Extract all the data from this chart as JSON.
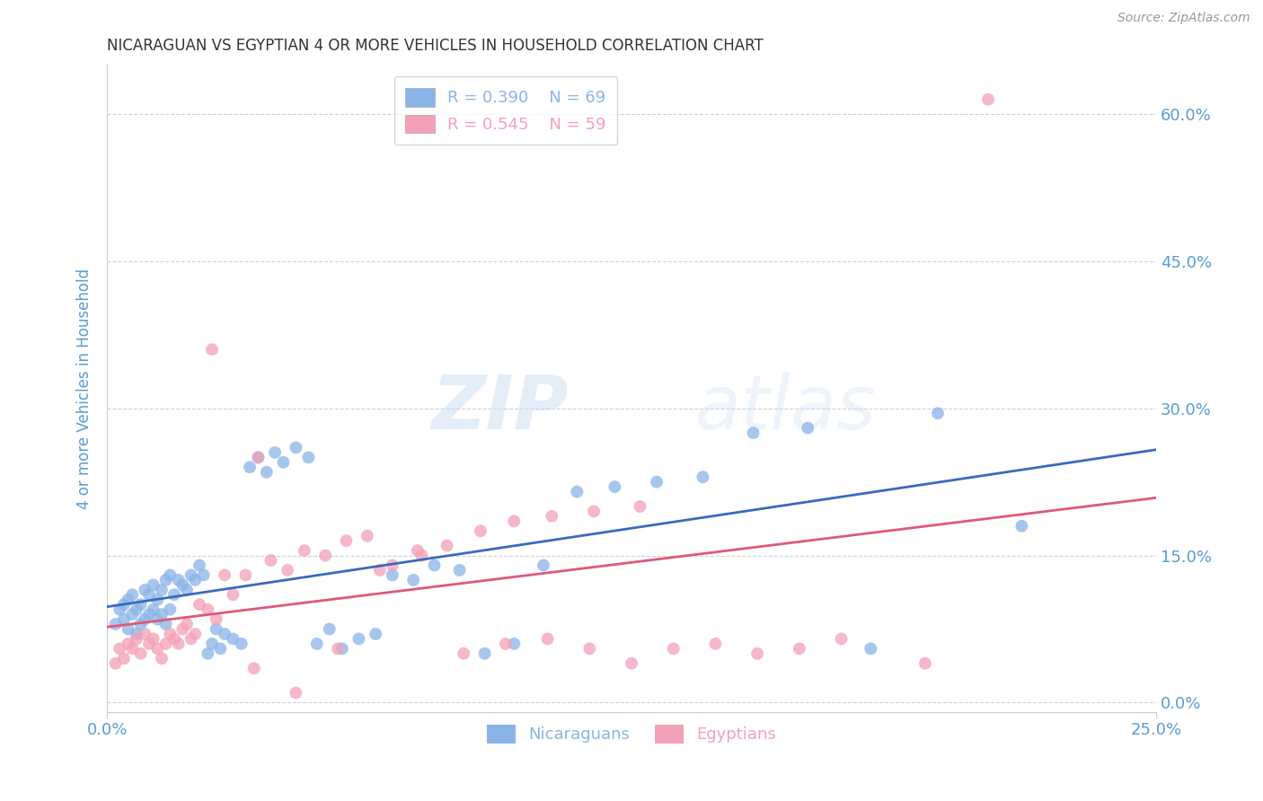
{
  "title": "NICARAGUAN VS EGYPTIAN 4 OR MORE VEHICLES IN HOUSEHOLD CORRELATION CHART",
  "source": "Source: ZipAtlas.com",
  "ylabel": "4 or more Vehicles in Household",
  "xlabel_nicaraguan": "Nicaraguans",
  "xlabel_egyptian": "Egyptians",
  "watermark_zip": "ZIP",
  "watermark_atlas": "atlas",
  "xlim": [
    0.0,
    0.25
  ],
  "ylim": [
    -0.01,
    0.65
  ],
  "xticks": [
    0.0,
    0.25
  ],
  "yticks": [
    0.0,
    0.15,
    0.3,
    0.45,
    0.6
  ],
  "ytick_labels_right": [
    "0.0%",
    "15.0%",
    "30.0%",
    "45.0%",
    "60.0%"
  ],
  "xtick_labels": [
    "0.0%",
    "25.0%"
  ],
  "color_nicaraguan": "#8ab4e8",
  "color_egyptian": "#f4a0b8",
  "line_color_nicaraguan": "#3a6abf",
  "line_color_egyptian": "#e05878",
  "R_nicaraguan": 0.39,
  "N_nicaraguan": 69,
  "R_egyptian": 0.545,
  "N_egyptian": 59,
  "nicaraguan_x": [
    0.002,
    0.003,
    0.004,
    0.004,
    0.005,
    0.005,
    0.006,
    0.006,
    0.007,
    0.007,
    0.008,
    0.008,
    0.009,
    0.009,
    0.01,
    0.01,
    0.011,
    0.011,
    0.012,
    0.012,
    0.013,
    0.013,
    0.014,
    0.014,
    0.015,
    0.015,
    0.016,
    0.017,
    0.018,
    0.019,
    0.02,
    0.021,
    0.022,
    0.023,
    0.024,
    0.025,
    0.026,
    0.027,
    0.028,
    0.03,
    0.032,
    0.034,
    0.036,
    0.038,
    0.04,
    0.042,
    0.045,
    0.048,
    0.05,
    0.053,
    0.056,
    0.06,
    0.064,
    0.068,
    0.073,
    0.078,
    0.084,
    0.09,
    0.097,
    0.104,
    0.112,
    0.121,
    0.131,
    0.142,
    0.154,
    0.167,
    0.182,
    0.198,
    0.218
  ],
  "nicaraguan_y": [
    0.08,
    0.095,
    0.085,
    0.1,
    0.075,
    0.105,
    0.09,
    0.11,
    0.07,
    0.095,
    0.08,
    0.1,
    0.085,
    0.115,
    0.09,
    0.11,
    0.095,
    0.12,
    0.085,
    0.105,
    0.09,
    0.115,
    0.08,
    0.125,
    0.095,
    0.13,
    0.11,
    0.125,
    0.12,
    0.115,
    0.13,
    0.125,
    0.14,
    0.13,
    0.05,
    0.06,
    0.075,
    0.055,
    0.07,
    0.065,
    0.06,
    0.24,
    0.25,
    0.235,
    0.255,
    0.245,
    0.26,
    0.25,
    0.06,
    0.075,
    0.055,
    0.065,
    0.07,
    0.13,
    0.125,
    0.14,
    0.135,
    0.05,
    0.06,
    0.14,
    0.215,
    0.22,
    0.225,
    0.23,
    0.275,
    0.28,
    0.055,
    0.295,
    0.18
  ],
  "egyptian_x": [
    0.002,
    0.003,
    0.004,
    0.005,
    0.006,
    0.007,
    0.008,
    0.009,
    0.01,
    0.011,
    0.012,
    0.013,
    0.014,
    0.015,
    0.016,
    0.017,
    0.018,
    0.019,
    0.02,
    0.021,
    0.022,
    0.024,
    0.026,
    0.028,
    0.03,
    0.033,
    0.036,
    0.039,
    0.043,
    0.047,
    0.052,
    0.057,
    0.062,
    0.068,
    0.074,
    0.081,
    0.089,
    0.097,
    0.106,
    0.116,
    0.127,
    0.025,
    0.035,
    0.045,
    0.055,
    0.065,
    0.075,
    0.085,
    0.095,
    0.105,
    0.115,
    0.125,
    0.135,
    0.145,
    0.155,
    0.165,
    0.175,
    0.195,
    0.21
  ],
  "egyptian_y": [
    0.04,
    0.055,
    0.045,
    0.06,
    0.055,
    0.065,
    0.05,
    0.07,
    0.06,
    0.065,
    0.055,
    0.045,
    0.06,
    0.07,
    0.065,
    0.06,
    0.075,
    0.08,
    0.065,
    0.07,
    0.1,
    0.095,
    0.085,
    0.13,
    0.11,
    0.13,
    0.25,
    0.145,
    0.135,
    0.155,
    0.15,
    0.165,
    0.17,
    0.14,
    0.155,
    0.16,
    0.175,
    0.185,
    0.19,
    0.195,
    0.2,
    0.36,
    0.035,
    0.01,
    0.055,
    0.135,
    0.15,
    0.05,
    0.06,
    0.065,
    0.055,
    0.04,
    0.055,
    0.06,
    0.05,
    0.055,
    0.065,
    0.04,
    0.615
  ],
  "background_color": "#ffffff",
  "grid_color": "#d0d0d0",
  "title_color": "#333333",
  "axis_label_color": "#5b9bd5",
  "tick_label_color": "#5b9bd5"
}
